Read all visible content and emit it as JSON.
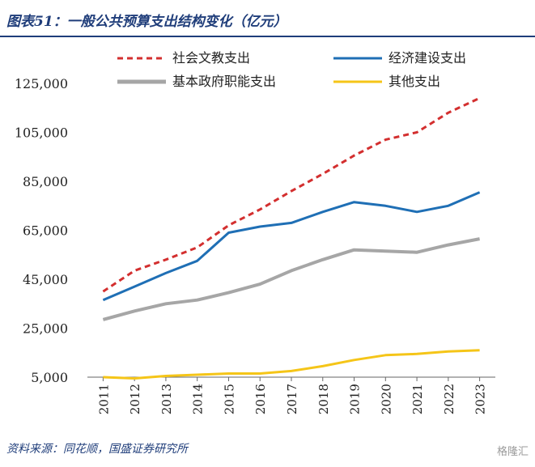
{
  "header": {
    "title": "图表51：一般公共预算支出结构变化（亿元）"
  },
  "footer": {
    "source": "资料来源：同花顺，国盛证券研究所",
    "watermark": "格隆汇"
  },
  "chart_data": {
    "type": "line",
    "title": "图表51：一般公共预算支出结构变化（亿元）",
    "xlabel": "",
    "ylabel": "",
    "x": [
      "2011",
      "2012",
      "2013",
      "2014",
      "2015",
      "2016",
      "2017",
      "2018",
      "2019",
      "2020",
      "2021",
      "2022",
      "2023"
    ],
    "ylim": [
      5000,
      125000
    ],
    "yticks": [
      5000,
      25000,
      45000,
      65000,
      85000,
      105000,
      125000
    ],
    "ytick_labels": [
      "5,000",
      "25,000",
      "45,000",
      "65,000",
      "85,000",
      "105,000",
      "125,000"
    ],
    "grid": false,
    "legend_position": "top",
    "series": [
      {
        "name": "社会文教支出",
        "color": "#d32f2f",
        "dash": "dashed",
        "values": [
          40000,
          48500,
          53000,
          58000,
          67000,
          73500,
          81000,
          88000,
          95500,
          102000,
          105000,
          113000,
          119000
        ]
      },
      {
        "name": "经济建设支出",
        "color": "#1f6fb5",
        "dash": "solid",
        "values": [
          36500,
          42000,
          47500,
          52500,
          64000,
          66500,
          68000,
          72500,
          76500,
          75000,
          72500,
          75000,
          80500
        ]
      },
      {
        "name": "基本政府职能支出",
        "color": "#a6a6a6",
        "dash": "solid",
        "values": [
          28500,
          32000,
          35000,
          36500,
          39500,
          43000,
          48500,
          53000,
          57000,
          56500,
          56000,
          59000,
          61500
        ]
      },
      {
        "name": "其他支出",
        "color": "#f5c518",
        "dash": "solid",
        "values": [
          5000,
          4500,
          5500,
          6000,
          6500,
          6500,
          7500,
          9500,
          12000,
          14000,
          14500,
          15500,
          16000
        ]
      }
    ]
  }
}
